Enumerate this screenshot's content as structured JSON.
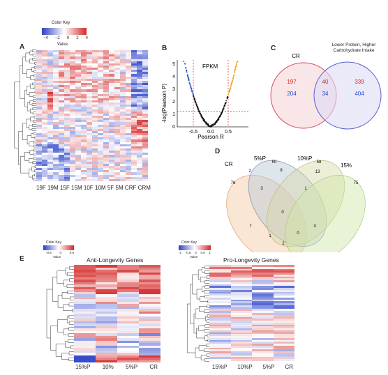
{
  "panels": {
    "A": {
      "letter": "A",
      "color_key": {
        "title": "Color Key",
        "ticks": [
          "−4",
          "−2",
          "0",
          "2",
          "4"
        ],
        "axis_label": "Value"
      },
      "columns": [
        "19F",
        "19M",
        "15F",
        "15M",
        "10F",
        "10M",
        "5F",
        "5M",
        "CRF",
        "CRM"
      ]
    },
    "B": {
      "letter": "B",
      "label": "FPKM",
      "xlabel": "Pearson R",
      "ylabel": "-log(Pearson P)",
      "x_ticks": [
        "-0.5",
        "0.0",
        "0.5"
      ],
      "y_ticks": [
        "0",
        "1",
        "2",
        "3",
        "4",
        "5"
      ]
    },
    "C": {
      "letter": "C",
      "set_left": "CR",
      "set_right": "Lower Protein, Higher Carbohydrate Intake",
      "left_only_red": "197",
      "left_only_blue": "204",
      "overlap_red": "40",
      "overlap_blue": "34",
      "right_only_red": "339",
      "right_only_blue": "404"
    },
    "D": {
      "letter": "D",
      "sets": [
        "CR",
        "5%P",
        "10%P",
        "15%"
      ],
      "regions": [
        "76",
        "2",
        "50",
        "8",
        "58",
        "13",
        "75",
        "3",
        "1",
        "0",
        "7",
        "3",
        "1",
        "0",
        "2"
      ]
    },
    "E": {
      "letter": "E",
      "left_title": "Anti-Longevity Genes",
      "right_title": "Pro-Longevity Genes",
      "left_key": {
        "title": "Color Key",
        "ticks": [
          "-0.6",
          "0",
          "0.6"
        ],
        "axis_label": "Value"
      },
      "right_key": {
        "title": "Color Key",
        "ticks": [
          "-1",
          "-0.6",
          "0",
          "0.6",
          "1"
        ],
        "axis_label": "Value"
      },
      "left_columns": [
        "15%P",
        "10%",
        "5%P",
        "CR"
      ],
      "right_columns": [
        "15%P",
        "10%P",
        "5%P",
        "CR"
      ]
    }
  },
  "colors": {
    "high": "#d6302f",
    "low": "#3a53c9",
    "mid": "#ffffff",
    "venn_left": "#e25a6a",
    "venn_right": "#6b75d9"
  }
}
